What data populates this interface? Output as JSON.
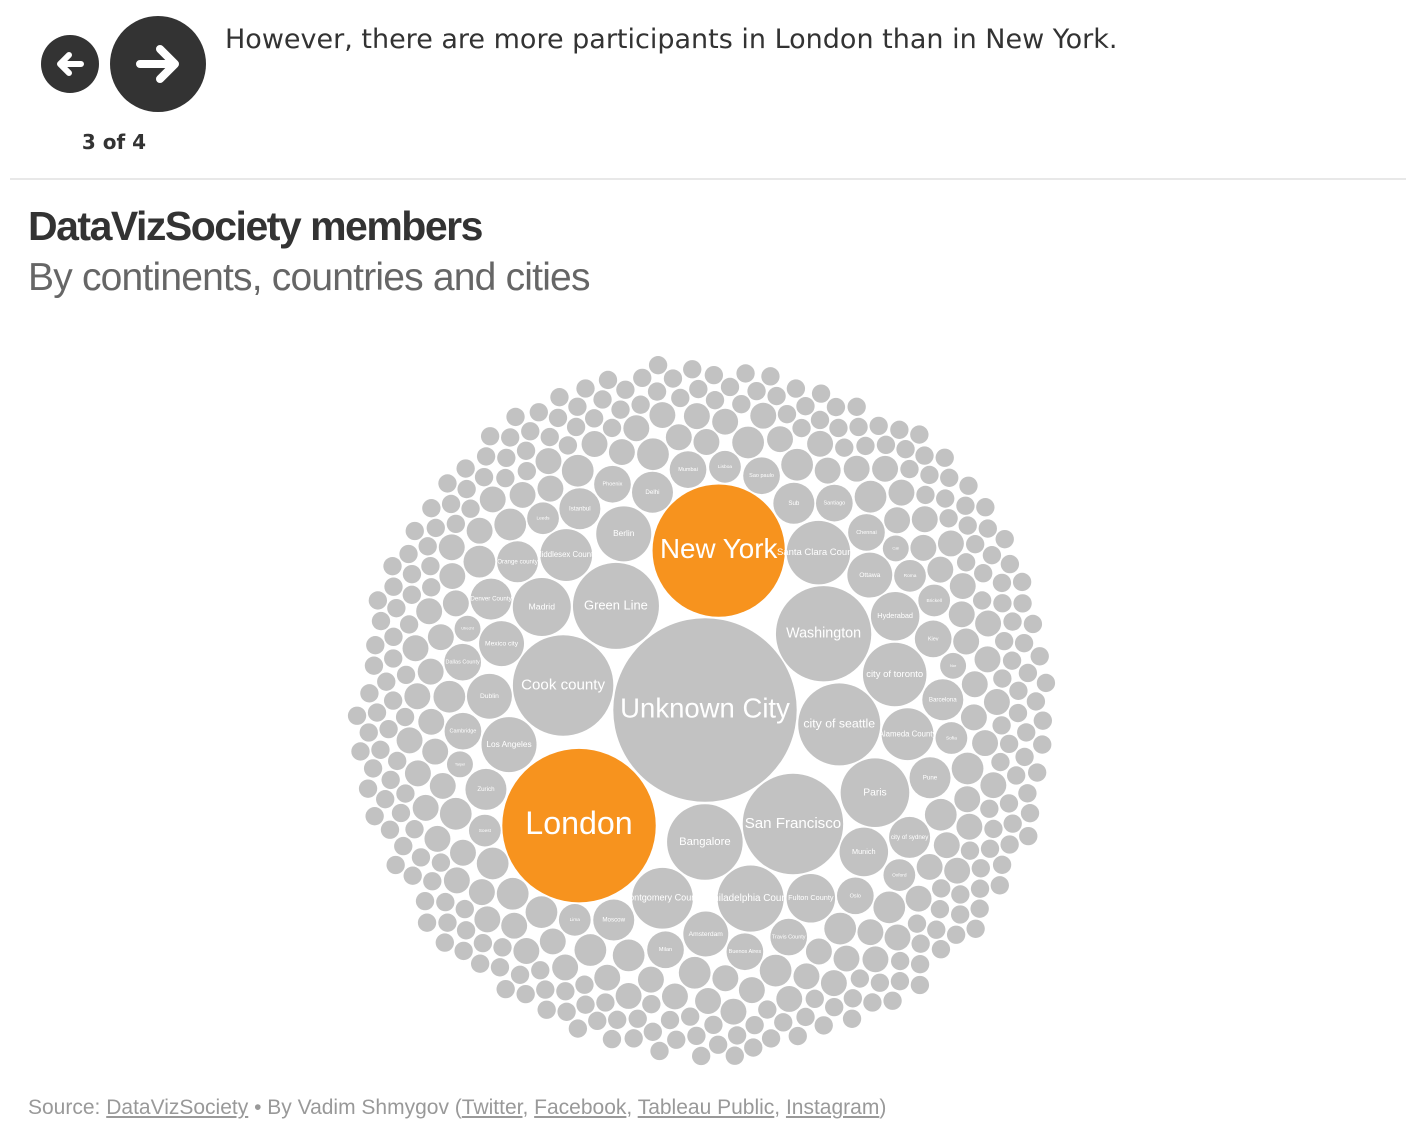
{
  "story": {
    "caption": "However, there are more participants in London than in New York.",
    "step": "3 of 4"
  },
  "chart_data": {
    "type": "bubble",
    "title": "DataVizSociety members",
    "subtitle": "By continents, countries and cities",
    "color": "#c2c2c2",
    "highlight_color": "#f7931e",
    "highlight": [
      "London",
      "New York"
    ],
    "categories": [
      "Unknown City",
      "London",
      "New York",
      "San Francisco",
      "Cook county",
      "Washington",
      "Green Line",
      "city of seattle",
      "Bangalore",
      "Paris",
      "Philadelphia County",
      "city of toronto",
      "Santa Clara County",
      "Montgomery County",
      "Madrid",
      "Berlin",
      "Los Angeles",
      "Alameda County",
      "Middlesex County",
      "Hyderabad",
      "Munich",
      "Fulton County",
      "Mexico city",
      "Ottawa",
      "Dublin",
      "Amsterdam",
      "Delhi",
      "Sub",
      "Moscow",
      "Zurich",
      "Pune",
      "Istanbul",
      "Barcelona",
      "Orange county",
      "city of sydney",
      "Denver County",
      "Kiev",
      "Oslo",
      "Chennai",
      "Mumbai",
      "Sao paulo",
      "Travis County",
      "Milan",
      "Cambridge",
      "Santiago",
      "Phoenix",
      "Buenos Aires",
      "Dallas County",
      "Lisboa",
      "Roma",
      "Lima",
      "Sofia",
      "Soest",
      "Leeds",
      "Brickell",
      "Oxford",
      "Taipei",
      "Cali",
      "Utrecht",
      "Nor",
      null,
      null,
      null,
      null,
      null,
      null,
      null,
      null,
      null,
      null,
      null,
      null,
      null,
      null,
      null,
      null,
      null,
      null,
      null,
      null,
      null,
      null,
      null,
      null,
      null,
      null,
      null,
      null,
      null,
      null,
      null,
      null,
      null,
      null,
      null,
      null,
      null,
      null,
      null,
      null,
      null,
      null,
      null,
      null,
      null,
      null,
      null,
      null,
      null,
      null,
      null,
      null,
      null,
      null,
      null,
      null,
      null,
      null,
      null,
      null,
      null,
      null,
      null,
      null,
      null,
      null,
      null,
      null,
      null,
      null,
      null,
      null,
      null,
      null,
      null,
      null,
      null,
      null,
      null,
      null,
      null,
      null,
      null,
      null,
      null,
      null,
      null,
      null,
      null,
      null,
      null,
      null,
      null,
      null,
      null,
      null,
      null,
      null,
      null,
      null,
      null,
      null,
      null,
      null,
      null,
      null,
      null,
      null,
      null,
      null,
      null,
      null,
      null,
      null,
      null,
      null,
      null,
      null,
      null,
      null,
      null,
      null,
      null,
      null,
      null,
      null,
      null,
      null,
      null,
      null,
      null,
      null,
      null,
      null,
      null,
      null,
      null,
      null,
      null,
      null,
      null,
      null,
      null,
      null,
      null,
      null,
      null,
      null,
      null,
      null,
      null,
      null,
      null,
      null,
      null,
      null,
      null,
      null,
      null,
      null,
      null,
      null,
      null,
      null,
      null,
      null,
      null,
      null,
      null,
      null,
      null,
      null,
      null,
      null,
      null,
      null,
      null,
      null,
      null,
      null,
      null,
      null,
      null,
      null,
      null,
      null,
      null,
      null,
      null,
      null,
      null,
      null,
      null,
      null,
      null,
      null,
      null,
      null,
      null,
      null,
      null,
      null,
      null,
      null,
      null,
      null,
      null,
      null,
      null,
      null,
      null,
      null,
      null,
      null,
      null,
      null,
      null,
      null,
      null,
      null,
      null,
      null,
      null,
      null,
      null,
      null,
      null,
      null,
      null,
      null,
      null,
      null,
      null,
      null,
      null,
      null,
      null,
      null,
      null,
      null,
      null,
      null,
      null,
      null,
      null,
      null,
      null,
      null,
      null,
      null,
      null,
      null,
      null,
      null,
      null,
      null,
      null,
      null,
      null,
      null,
      null,
      null,
      null,
      null,
      null,
      null,
      null,
      null,
      null,
      null,
      null,
      null,
      null,
      null,
      null,
      null,
      null,
      null,
      null,
      null,
      null,
      null,
      null,
      null,
      null,
      null,
      null,
      null,
      null,
      null,
      null,
      null,
      null,
      null,
      null,
      null,
      null,
      null,
      null,
      null,
      null,
      null,
      null,
      null,
      null,
      null,
      null,
      null,
      null,
      null,
      null,
      null,
      null,
      null,
      null,
      null,
      null,
      null,
      null,
      null,
      null,
      null,
      null,
      null,
      null,
      null,
      null,
      null,
      null,
      null,
      null,
      null,
      null,
      null,
      null,
      null,
      null,
      null,
      null,
      null
    ],
    "values": [
      100,
      70,
      52,
      30,
      30,
      27,
      22,
      20,
      17,
      14,
      13,
      12,
      12,
      11,
      10,
      9,
      9,
      8,
      8,
      7,
      7,
      7,
      6,
      6,
      6,
      6,
      5,
      5,
      5,
      5,
      5,
      5,
      5,
      5,
      5,
      5,
      4,
      4,
      4,
      4,
      4,
      4,
      4,
      4,
      4,
      4,
      4,
      4,
      3,
      3,
      3,
      3,
      3,
      3,
      3,
      3,
      2,
      2,
      2,
      2,
      3,
      3,
      3,
      3,
      3,
      3,
      3,
      3,
      3,
      3,
      3,
      3,
      3,
      3,
      3,
      3,
      3,
      3,
      3,
      3,
      2,
      2,
      2,
      2,
      2,
      2,
      2,
      2,
      2,
      2,
      2,
      2,
      2,
      2,
      2,
      2,
      2,
      2,
      2,
      2,
      2,
      2,
      2,
      2,
      2,
      2,
      2,
      2,
      2,
      2,
      2,
      2,
      2,
      2,
      2,
      2,
      2,
      2,
      2,
      2,
      2,
      2,
      2,
      2,
      2,
      2,
      2,
      2,
      2,
      2,
      2,
      2,
      2,
      2,
      2,
      2,
      2,
      2,
      2,
      2,
      2,
      2,
      2,
      2,
      2,
      2,
      2,
      2,
      2,
      2,
      2,
      2,
      2,
      2,
      2,
      2,
      2,
      2,
      2,
      2,
      1,
      1,
      1,
      1,
      1,
      1,
      1,
      1,
      1,
      1,
      1,
      1,
      1,
      1,
      1,
      1,
      1,
      1,
      1,
      1,
      1,
      1,
      1,
      1,
      1,
      1,
      1,
      1,
      1,
      1,
      1,
      1,
      1,
      1,
      1,
      1,
      1,
      1,
      1,
      1,
      1,
      1,
      1,
      1,
      1,
      1,
      1,
      1,
      1,
      1,
      1,
      1,
      1,
      1,
      1,
      1,
      1,
      1,
      1,
      1,
      1,
      1,
      1,
      1,
      1,
      1,
      1,
      1,
      1,
      1,
      1,
      1,
      1,
      1,
      1,
      1,
      1,
      1,
      1,
      1,
      1,
      1,
      1,
      1,
      1,
      1,
      1,
      1,
      1,
      1,
      1,
      1,
      1,
      1,
      1,
      1,
      1,
      1,
      1,
      1,
      1,
      1,
      1,
      1,
      1,
      1,
      1,
      1,
      1,
      1,
      1,
      1,
      1,
      1,
      1,
      1,
      1,
      1,
      1,
      1,
      1,
      1,
      1,
      1,
      1,
      1,
      1,
      1,
      1,
      1,
      1,
      1,
      1,
      1,
      1,
      1,
      1,
      1,
      1,
      1,
      1,
      1,
      1,
      1,
      1,
      1,
      1,
      1,
      1,
      1,
      1,
      1,
      1,
      1,
      1,
      1,
      1,
      1,
      1,
      1,
      1,
      1,
      1,
      1,
      1,
      1,
      1,
      1,
      1,
      1,
      1,
      1,
      1,
      1,
      1,
      1,
      1,
      1,
      1,
      1,
      1,
      1,
      1,
      1,
      1,
      1,
      1,
      1,
      1,
      1,
      1,
      1,
      1,
      1,
      1,
      1,
      1,
      1,
      1,
      1,
      1,
      1,
      1,
      1,
      1,
      1,
      1,
      1,
      1,
      1,
      1,
      1,
      1,
      1,
      1,
      1,
      1,
      1,
      1,
      1,
      1,
      1,
      1,
      1,
      1,
      1,
      1,
      1,
      1,
      1,
      1,
      1,
      1,
      1,
      1,
      1,
      1,
      1,
      1,
      1
    ]
  },
  "footer": {
    "source_label": "Source:",
    "source_link": "DataVizSociety",
    "byline": "• By Vadim Shmygov (",
    "links": [
      "Twitter",
      "Facebook",
      "Tableau Public",
      "Instagram"
    ],
    "separator": ", ",
    "closing": ")"
  }
}
